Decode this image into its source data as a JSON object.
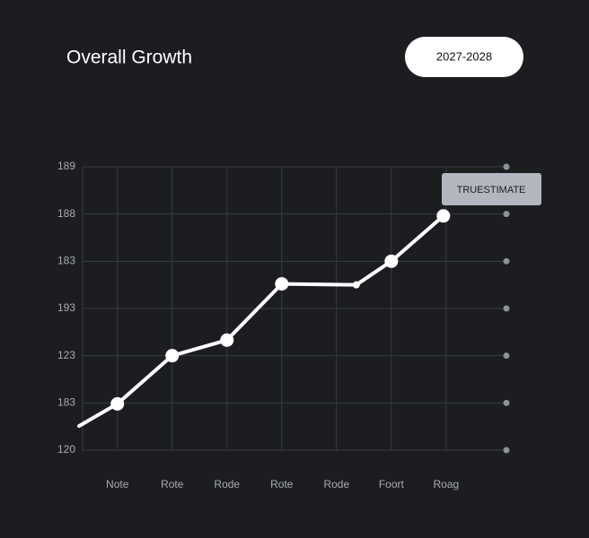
{
  "chart_data": {
    "type": "line",
    "title": "Overall Growth",
    "period": "2027-2028",
    "annotation": "TRUESTIMATE",
    "x": [
      0.3,
      1,
      2,
      3,
      4,
      5.36,
      6,
      6.95
    ],
    "values": [
      0.51,
      0.98,
      2.0,
      2.33,
      3.52,
      3.5,
      4.0,
      4.96
    ],
    "color": "#ffffff",
    "xlim": [
      0.3,
      8.1
    ],
    "xticks": [
      {
        "value": 1,
        "label": "Note"
      },
      {
        "value": 2,
        "label": "Rote"
      },
      {
        "value": 3,
        "label": "Rode"
      },
      {
        "value": 4,
        "label": "Rote"
      },
      {
        "value": 5,
        "label": "Rode"
      },
      {
        "value": 6,
        "label": "Foort"
      },
      {
        "value": 7,
        "label": "Roag"
      }
    ],
    "ylim": [
      0,
      6
    ],
    "yticks": [
      {
        "value": 0,
        "label": "120"
      },
      {
        "value": 1,
        "label": "183"
      },
      {
        "value": 2,
        "label": "123"
      },
      {
        "value": 3,
        "label": "193"
      },
      {
        "value": 4,
        "label": "183"
      },
      {
        "value": 5,
        "label": "188"
      },
      {
        "value": 6,
        "label": "189"
      }
    ],
    "grid": true
  }
}
